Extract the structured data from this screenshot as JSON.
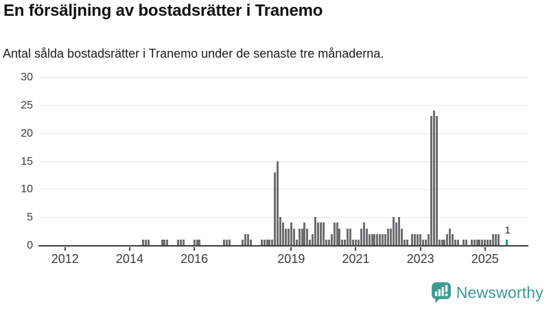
{
  "header": {
    "title": "En försäljning av bostadsrätter i Tranemo",
    "subtitle": "Antal sålda bostadsrätter i Tranemo under de senaste tre månaderna."
  },
  "chart_data": {
    "type": "bar",
    "title": "En försäljning av bostadsrätter i Tranemo",
    "subtitle": "Antal sålda bostadsrätter i Tranemo under de senaste tre månaderna.",
    "xlabel": "",
    "ylabel": "",
    "ylim": [
      0,
      30
    ],
    "grid": true,
    "y_ticks": [
      0,
      5,
      10,
      15,
      20,
      25,
      30
    ],
    "x_tick_years": [
      "2012",
      "2014",
      "2016",
      "2019",
      "2021",
      "2023",
      "2025"
    ],
    "start_month": "2011-04",
    "values_by_year": {
      "2011": [
        0,
        0,
        0,
        0,
        0,
        0,
        0,
        0,
        0
      ],
      "2012": [
        0,
        0,
        0,
        0,
        0,
        0,
        0,
        0,
        0,
        0,
        0,
        0
      ],
      "2013": [
        0,
        0,
        0,
        0,
        0,
        0,
        0,
        0,
        0,
        0,
        0,
        0
      ],
      "2014": [
        0,
        0,
        0,
        0,
        0,
        1,
        1,
        1,
        0,
        0,
        0,
        0
      ],
      "2015": [
        1,
        1,
        1,
        0,
        0,
        0,
        1,
        1,
        1,
        0,
        0,
        0
      ],
      "2016": [
        1,
        1,
        1,
        0,
        0,
        0,
        0,
        0,
        0,
        0,
        0,
        1
      ],
      "2017": [
        1,
        1,
        0,
        0,
        0,
        0,
        1,
        2,
        2,
        1,
        0,
        0
      ],
      "2018": [
        0,
        1,
        1,
        1,
        1,
        1,
        13,
        15,
        5,
        4,
        3,
        3
      ],
      "2019": [
        4,
        3,
        1,
        3,
        3,
        4,
        3,
        1,
        2,
        5,
        4,
        4
      ],
      "2020": [
        4,
        1,
        1,
        2,
        4,
        4,
        3,
        1,
        1,
        3,
        3,
        1
      ],
      "2021": [
        1,
        1,
        3,
        4,
        3,
        2,
        2,
        2,
        2,
        2,
        2,
        2
      ],
      "2022": [
        3,
        3,
        5,
        4,
        5,
        3,
        1,
        1,
        0,
        2,
        2,
        2
      ],
      "2023": [
        2,
        1,
        1,
        2,
        23,
        24,
        23,
        1,
        1,
        1,
        2,
        3
      ],
      "2024": [
        2,
        1,
        1,
        0,
        1,
        1,
        0,
        1,
        1,
        1,
        1,
        1
      ],
      "2025": [
        1,
        1,
        1,
        2,
        2,
        2,
        0,
        0,
        1
      ]
    },
    "bar_color": "#6c6c71",
    "gridline_color": "#e7e7e7",
    "axis_color": "#3c3c40",
    "highlight": {
      "month": "2025-09",
      "value": 1,
      "label": "1",
      "color": "#1a9c8e"
    }
  },
  "footer": {
    "brand": "Newsworthy",
    "brand_color": "#3b9b93"
  }
}
